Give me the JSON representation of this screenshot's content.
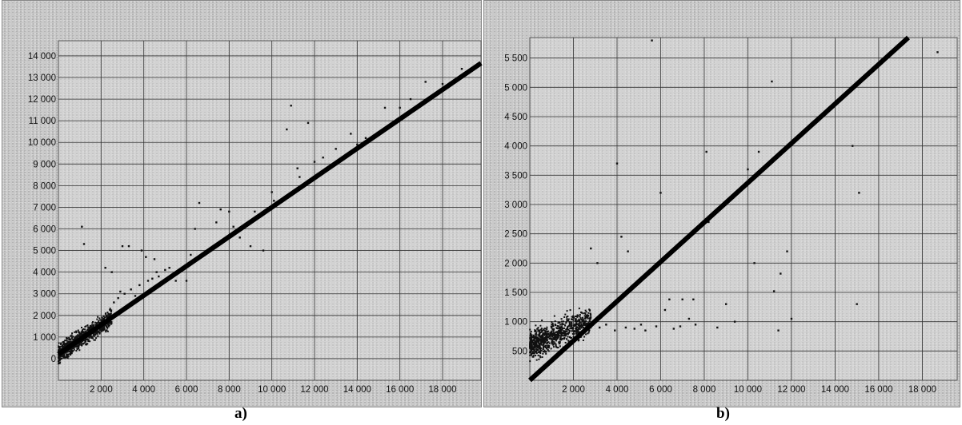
{
  "chart_data": [
    {
      "type": "scatter",
      "panel_label": "a)",
      "xlim": [
        0,
        19800
      ],
      "ylim": [
        -1000,
        14700
      ],
      "x_ticks": [
        2000,
        4000,
        6000,
        8000,
        10000,
        12000,
        14000,
        16000,
        18000
      ],
      "x_tick_labels": [
        "2 000",
        "4 000",
        "6 000",
        "8 000",
        "10 000",
        "12 000",
        "14 000",
        "16 000",
        "18 000"
      ],
      "y_ticks": [
        0,
        1000,
        2000,
        3000,
        4000,
        5000,
        6000,
        7000,
        8000,
        9000,
        10000,
        11000,
        12000,
        13000,
        14000
      ],
      "y_tick_labels": [
        "0",
        "1 000",
        "2 000",
        "3 000",
        "4 000",
        "5 000",
        "6 000",
        "7 000",
        "8 000",
        "9 000",
        "10 000",
        "11 000",
        "12 000",
        "13 000",
        "14 000"
      ],
      "grid": true,
      "fit_line": {
        "slope": 0.68,
        "intercept": 200
      },
      "cluster": {
        "x_range": [
          0,
          2500
        ],
        "y_center": "fit",
        "spread": 700
      },
      "points": [
        [
          1100,
          6100
        ],
        [
          1200,
          5300
        ],
        [
          2200,
          4200
        ],
        [
          2500,
          4000
        ],
        [
          3000,
          5200
        ],
        [
          3300,
          5200
        ],
        [
          3900,
          5000
        ],
        [
          4100,
          4700
        ],
        [
          4500,
          4600
        ],
        [
          4700,
          3800
        ],
        [
          5000,
          4100
        ],
        [
          5500,
          3600
        ],
        [
          6000,
          3600
        ],
        [
          6400,
          6000
        ],
        [
          6200,
          4800
        ],
        [
          6600,
          7200
        ],
        [
          7000,
          4900
        ],
        [
          7400,
          6300
        ],
        [
          7600,
          6900
        ],
        [
          8000,
          6800
        ],
        [
          8500,
          5600
        ],
        [
          9000,
          5200
        ],
        [
          9600,
          5000
        ],
        [
          10000,
          7700
        ],
        [
          10100,
          7300
        ],
        [
          10700,
          10600
        ],
        [
          10900,
          11700
        ],
        [
          11200,
          8800
        ],
        [
          11300,
          8400
        ],
        [
          11700,
          10900
        ],
        [
          12400,
          9300
        ],
        [
          13000,
          9700
        ],
        [
          13700,
          10400
        ],
        [
          14400,
          10200
        ],
        [
          15300,
          11600
        ],
        [
          16000,
          11600
        ],
        [
          17200,
          12800
        ],
        [
          18000,
          12700
        ],
        [
          18900,
          13400
        ],
        [
          3100,
          3000
        ],
        [
          3400,
          3200
        ],
        [
          3600,
          2900
        ],
        [
          3800,
          3400
        ],
        [
          4200,
          3600
        ],
        [
          4400,
          3700
        ],
        [
          2600,
          2600
        ],
        [
          2800,
          2800
        ],
        [
          2900,
          3100
        ],
        [
          4600,
          4000
        ],
        [
          5200,
          4200
        ],
        [
          8200,
          6100
        ],
        [
          9200,
          6800
        ],
        [
          12000,
          9100
        ],
        [
          14000,
          9900
        ],
        [
          16500,
          12000
        ]
      ]
    },
    {
      "type": "scatter",
      "panel_label": "b)",
      "xlim": [
        0,
        19600
      ],
      "ylim": [
        0,
        5850
      ],
      "x_ticks": [
        2000,
        4000,
        6000,
        8000,
        10000,
        12000,
        14000,
        16000,
        18000
      ],
      "x_tick_labels": [
        "2 000",
        "4 000",
        "6 000",
        "8 000",
        "10 000",
        "12 000",
        "14 000",
        "16 000",
        "18 000"
      ],
      "y_ticks": [
        500,
        1000,
        1500,
        2000,
        2500,
        3000,
        3500,
        4000,
        4500,
        5000,
        5500
      ],
      "y_tick_labels": [
        "500",
        "1 000",
        "1 500",
        "2 000",
        "2 500",
        "3 000",
        "3 500",
        "4 000",
        "4 500",
        "5 000",
        "5 500"
      ],
      "grid": true,
      "fit_line": {
        "slope": 0.337,
        "intercept": 0
      },
      "cluster": {
        "x_range": [
          0,
          2800
        ],
        "y_center": 600,
        "spread": 400
      },
      "points": [
        [
          2800,
          2250
        ],
        [
          3100,
          2000
        ],
        [
          4000,
          3700
        ],
        [
          4200,
          2450
        ],
        [
          4500,
          2200
        ],
        [
          5600,
          5800
        ],
        [
          6000,
          3200
        ],
        [
          6200,
          1200
        ],
        [
          6400,
          1380
        ],
        [
          7000,
          1380
        ],
        [
          7300,
          1050
        ],
        [
          7500,
          1380
        ],
        [
          8100,
          3900
        ],
        [
          8200,
          2700
        ],
        [
          9000,
          1300
        ],
        [
          9400,
          1000
        ],
        [
          10000,
          3600
        ],
        [
          10300,
          2000
        ],
        [
          10500,
          3900
        ],
        [
          11100,
          5100
        ],
        [
          11200,
          1520
        ],
        [
          11500,
          1820
        ],
        [
          11800,
          2200
        ],
        [
          14800,
          4000
        ],
        [
          15100,
          3200
        ],
        [
          15000,
          1300
        ],
        [
          18700,
          5600
        ],
        [
          3200,
          900
        ],
        [
          3500,
          950
        ],
        [
          3900,
          850
        ],
        [
          4400,
          900
        ],
        [
          4800,
          880
        ],
        [
          5100,
          950
        ],
        [
          5300,
          850
        ],
        [
          5800,
          920
        ],
        [
          6600,
          880
        ],
        [
          6900,
          920
        ],
        [
          7600,
          950
        ],
        [
          8600,
          900
        ],
        [
          11400,
          850
        ],
        [
          12000,
          1050
        ]
      ]
    }
  ]
}
